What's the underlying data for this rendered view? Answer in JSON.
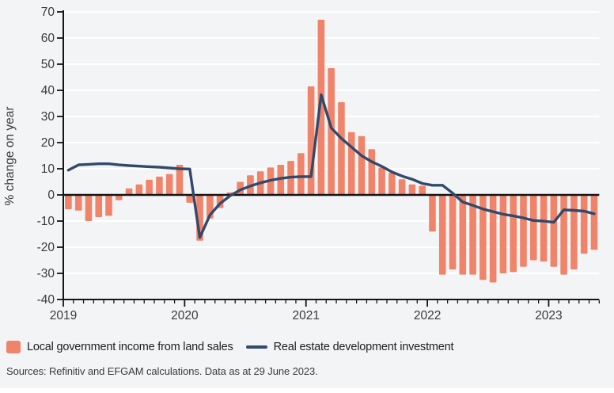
{
  "colors": {
    "bars": "#F0846A",
    "line": "#32496B",
    "background": "#F3F4F6",
    "grid": "#FFFFFF",
    "axis": "#141414",
    "tick_text": "#3a3a3a",
    "legend_text": "#1d1d1d"
  },
  "y_axis": {
    "label": "% change on year",
    "ticks": [
      70,
      60,
      50,
      40,
      30,
      20,
      10,
      0,
      -10,
      -20,
      -30,
      -40
    ],
    "min": -40,
    "max": 70
  },
  "x_axis": {
    "years": [
      "2019",
      "2020",
      "2021",
      "2022",
      "2023"
    ]
  },
  "legend": {
    "items": [
      {
        "label": "Local government income from land sales",
        "series": "bars"
      },
      {
        "label": "Real estate development investment",
        "series": "line"
      }
    ]
  },
  "footer": {
    "source": "Sources: Refinitiv and EFGAM calculations. Data as at 29 June 2023."
  },
  "chart_data": {
    "type": "bar+line",
    "ylabel": "% change on year",
    "ylim": [
      -40,
      70
    ],
    "grid": true,
    "legend_position": "bottom",
    "x": [
      "2019-01",
      "2019-02",
      "2019-03",
      "2019-04",
      "2019-05",
      "2019-06",
      "2019-07",
      "2019-08",
      "2019-09",
      "2019-10",
      "2019-11",
      "2019-12",
      "2020-01",
      "2020-02",
      "2020-03",
      "2020-04",
      "2020-05",
      "2020-06",
      "2020-07",
      "2020-08",
      "2020-09",
      "2020-10",
      "2020-11",
      "2020-12",
      "2021-01",
      "2021-02",
      "2021-03",
      "2021-04",
      "2021-05",
      "2021-06",
      "2021-07",
      "2021-08",
      "2021-09",
      "2021-10",
      "2021-11",
      "2021-12",
      "2022-01",
      "2022-02",
      "2022-03",
      "2022-04",
      "2022-05",
      "2022-06",
      "2022-07",
      "2022-08",
      "2022-09",
      "2022-10",
      "2022-11",
      "2022-12",
      "2023-01",
      "2023-02",
      "2023-03",
      "2023-04",
      "2023-05"
    ],
    "series": [
      {
        "name": "Local government income from land sales",
        "type": "bar",
        "color": "#F0846A",
        "values": [
          -5.5,
          -6,
          -10,
          -8.5,
          -8,
          -2,
          2.5,
          4,
          5.8,
          7,
          8,
          11.5,
          -3,
          -17.5,
          -9,
          -5,
          1,
          5,
          7.5,
          9,
          10.5,
          11.5,
          13,
          16,
          41.5,
          67,
          48.5,
          35.5,
          24,
          22.5,
          17.5,
          10.5,
          8.5,
          6,
          4,
          3.5,
          -14,
          -30.5,
          -28.5,
          -30.5,
          -30.5,
          -32.5,
          -33.5,
          -30,
          -29.5,
          -27.5,
          -25,
          -25.5,
          -27.5,
          -30.5,
          -28.5,
          -22.5,
          -21
        ]
      },
      {
        "name": "Real estate development investment",
        "type": "line",
        "color": "#32496B",
        "values": [
          9.5,
          11.5,
          11.7,
          11.9,
          11.9,
          11.5,
          11.2,
          11,
          10.8,
          10.6,
          10.3,
          10,
          9.9,
          -16.3,
          -7.7,
          -3.3,
          -0.3,
          1.9,
          3.4,
          4.6,
          5.6,
          6.3,
          6.8,
          7,
          7,
          38.3,
          25.6,
          21.6,
          18.3,
          15,
          12.7,
          10.9,
          8.8,
          7.2,
          6,
          4.4,
          3.7,
          3.7,
          0.7,
          -2.7,
          -4,
          -5.4,
          -6.4,
          -7.4,
          -8,
          -8.8,
          -9.8,
          -10,
          -10.5,
          -5.7,
          -5.9,
          -6.2,
          -7.2
        ]
      }
    ]
  }
}
